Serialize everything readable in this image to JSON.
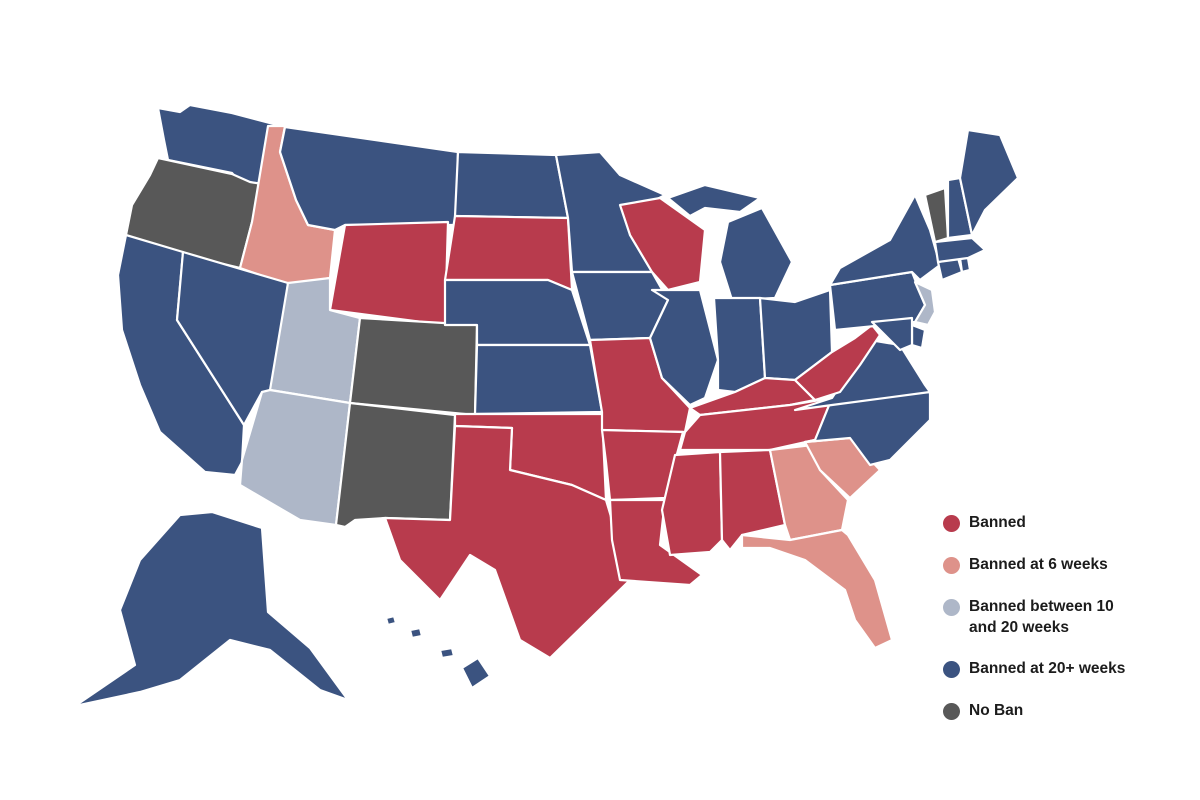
{
  "colors": {
    "banned": "#b83b4d",
    "banned_6_weeks": "#de928a",
    "banned_10_20_weeks": "#aeb7c8",
    "banned_20_plus_weeks": "#3b5380",
    "no_ban": "#585858"
  },
  "legend": {
    "placement": "bottom-right",
    "items": [
      {
        "key": "banned",
        "label": "Banned"
      },
      {
        "key": "banned_6_weeks",
        "label": "Banned at 6 weeks"
      },
      {
        "key": "banned_10_20_weeks",
        "label": "Banned between 10 and 20 weeks"
      },
      {
        "key": "banned_20_plus_weeks",
        "label": "Banned at 20+ weeks"
      },
      {
        "key": "no_ban",
        "label": "No Ban"
      }
    ]
  },
  "states": {
    "WA": "banned_20_plus_weeks",
    "OR": "no_ban",
    "CA": "banned_20_plus_weeks",
    "ID": "banned_6_weeks",
    "NV": "banned_20_plus_weeks",
    "MT": "banned_20_plus_weeks",
    "WY": "banned",
    "UT": "banned_10_20_weeks",
    "AZ": "banned_10_20_weeks",
    "CO": "no_ban",
    "NM": "no_ban",
    "ND": "banned_20_plus_weeks",
    "SD": "banned",
    "NE": "banned_20_plus_weeks",
    "KS": "banned_20_plus_weeks",
    "OK": "banned",
    "TX": "banned",
    "MN": "banned_20_plus_weeks",
    "IA": "banned_20_plus_weeks",
    "MO": "banned",
    "AR": "banned",
    "LA": "banned",
    "WI": "banned",
    "IL": "banned_20_plus_weeks",
    "MI": "banned_20_plus_weeks",
    "IN": "banned_20_plus_weeks",
    "OH": "banned_20_plus_weeks",
    "KY": "banned",
    "TN": "banned",
    "MS": "banned",
    "AL": "banned",
    "GA": "banned_6_weeks",
    "FL": "banned_6_weeks",
    "SC": "banned_6_weeks",
    "NC": "banned_20_plus_weeks",
    "VA": "banned_20_plus_weeks",
    "WV": "banned",
    "PA": "banned_20_plus_weeks",
    "NY": "banned_20_plus_weeks",
    "NJ": "banned_10_20_weeks",
    "DE": "banned_20_plus_weeks",
    "MD": "banned_20_plus_weeks",
    "CT": "banned_20_plus_weeks",
    "RI": "banned_20_plus_weeks",
    "MA": "banned_20_plus_weeks",
    "VT": "no_ban",
    "NH": "banned_20_plus_weeks",
    "ME": "banned_20_plus_weeks",
    "AK": "banned_20_plus_weeks",
    "HI": "banned_20_plus_weeks"
  }
}
